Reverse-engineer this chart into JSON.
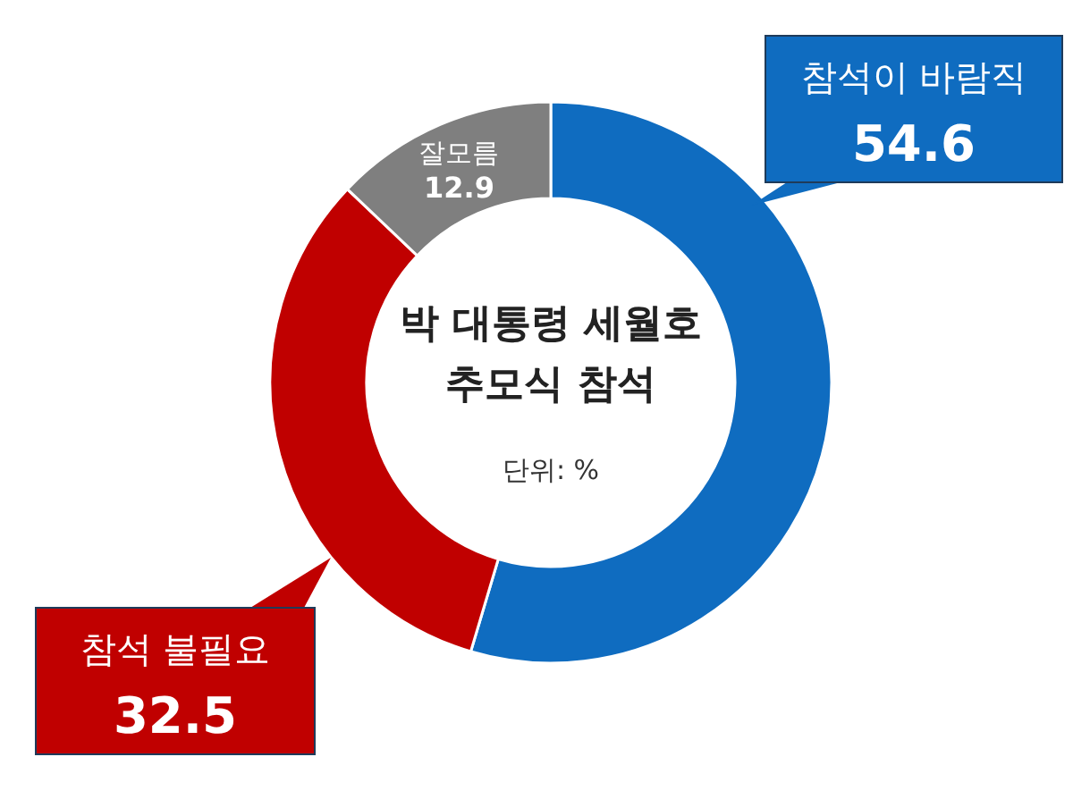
{
  "chart_data": {
    "type": "donut",
    "title": "박 대통령 세월호\n추모식 참석",
    "categories": [
      "참석이 바람직",
      "참석 불필요",
      "잘모름"
    ],
    "values": [
      54.6,
      32.5,
      12.9
    ],
    "colors": [
      "#0f6cc0",
      "#c00000",
      "#7f7f7f"
    ],
    "data_labels": true,
    "annotations": [
      "단위: %"
    ]
  }
}
